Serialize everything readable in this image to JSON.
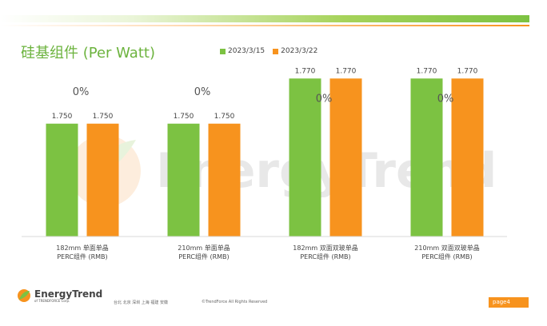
{
  "slide": {
    "title": "硅基组件 (Per Watt)",
    "page_label": "page4",
    "offices": "台北 北京 深圳 上海 福建 安徽",
    "copyright": "©TrendForce All Rights Reserved",
    "watermark": "EnergyTrend",
    "logo": {
      "name": "EnergyTrend",
      "sub": "of TRENDFORCE Corp."
    }
  },
  "colors": {
    "series_1": "#7cc242",
    "series_2": "#f7931e",
    "title": "#6cb33e"
  },
  "chart_data": {
    "type": "bar",
    "title": "硅基组件 (Per Watt)",
    "categories": [
      [
        "182mm 单面单晶",
        "PERC组件 (RMB)"
      ],
      [
        "210mm 单面单晶",
        "PERC组件 (RMB)"
      ],
      [
        "182mm 双面双玻单晶",
        "PERC组件 (RMB)"
      ],
      [
        "210mm 双面双玻单晶",
        "PERC组件 (RMB)"
      ]
    ],
    "series": [
      {
        "name": "2023/3/15",
        "values": [
          1.75,
          1.75,
          1.77,
          1.77
        ],
        "labels": [
          "1.750",
          "1.750",
          "1.770",
          "1.770"
        ]
      },
      {
        "name": "2023/3/22",
        "values": [
          1.75,
          1.75,
          1.77,
          1.77
        ],
        "labels": [
          "1.750",
          "1.750",
          "1.770",
          "1.770"
        ]
      }
    ],
    "annotations": [
      "0%",
      "0%",
      "0%",
      "0%"
    ],
    "legend": "top",
    "grid": false
  }
}
